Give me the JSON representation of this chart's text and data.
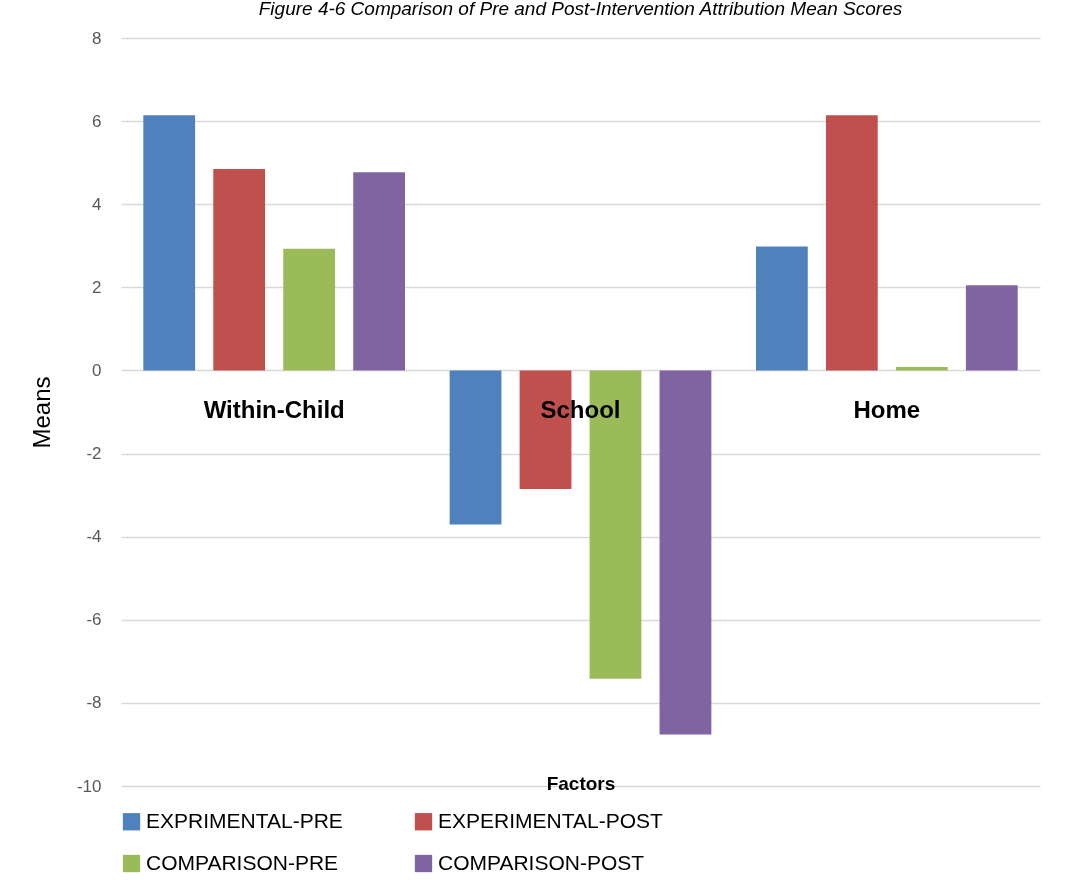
{
  "chart_data": {
    "type": "bar",
    "title": "Figure 4-6 Comparison of Pre and Post-Intervention Attribution Mean Scores",
    "xlabel": "Factors",
    "ylabel": "Means",
    "categories": [
      "Within-Child",
      "School",
      "Home"
    ],
    "series": [
      {
        "name": "EXPRIMENTAL-PRE",
        "color": "#4f81bd",
        "values": [
          6.14,
          -3.71,
          2.98
        ]
      },
      {
        "name": "EXPERIMENTAL-POST",
        "color": "#c0504d",
        "values": [
          4.85,
          -2.85,
          6.14
        ]
      },
      {
        "name": "COMPARISON-PRE",
        "color": "#9bbb59",
        "values": [
          2.93,
          -7.42,
          0.08
        ]
      },
      {
        "name": "COMPARISON-POST",
        "color": "#8064a2",
        "values": [
          4.77,
          -8.76,
          2.05
        ]
      }
    ],
    "ylim": [
      -10,
      8
    ],
    "yticks": [
      -10,
      -8,
      -6,
      -4,
      -2,
      0,
      2,
      4,
      6,
      8
    ],
    "grid": "y",
    "legend": "bottom"
  }
}
